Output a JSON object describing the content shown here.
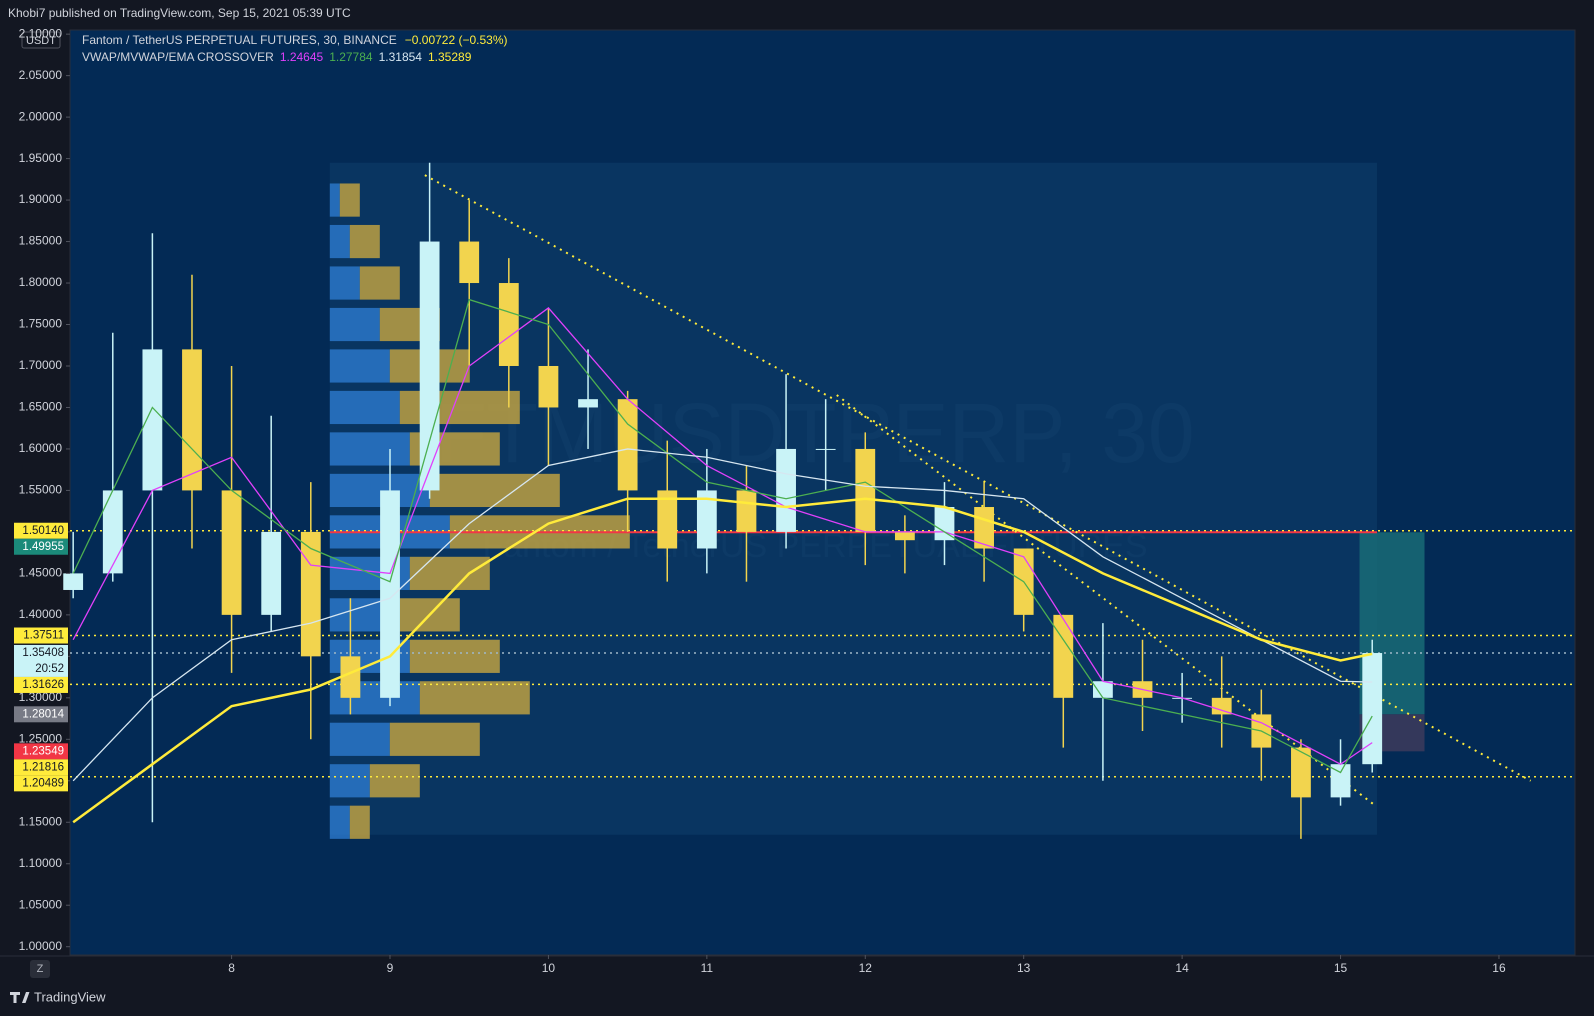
{
  "published": "Khobi7 published on TradingView.com, Sep 15, 2021 05:39 UTC",
  "footer": "TradingView",
  "currency": "USDT",
  "zoom_button": "Z",
  "header": {
    "symbol": "Fantom / TetherUS PERPETUAL FUTURES, 30, BINANCE",
    "change": "−0.00722 (−0.53%)"
  },
  "watermark": {
    "title": "FTMUSDTPERP, 30",
    "subtitle": "Fantom / TetherUS PERPETUAL FUTURES"
  },
  "chart_data": {
    "type": "candlestick",
    "xlim": [
      6.98,
      16.48
    ],
    "xticks": [
      8,
      9,
      10,
      11,
      12,
      13,
      14,
      15,
      16
    ],
    "ylim": [
      0.99,
      2.105
    ],
    "yticks": [
      {
        "value": 1.0,
        "label": "1.00000"
      },
      {
        "value": 1.05,
        "label": "1.05000"
      },
      {
        "value": 1.1,
        "label": "1.10000"
      },
      {
        "value": 1.15,
        "label": "1.15000"
      },
      {
        "value": 1.2,
        "label": "1.20000"
      },
      {
        "value": 1.25,
        "label": "1.25000"
      },
      {
        "value": 1.3,
        "label": "1.30000"
      },
      {
        "value": 1.35,
        "label": "1.35000"
      },
      {
        "value": 1.4,
        "label": "1.40000"
      },
      {
        "value": 1.45,
        "label": "1.45000"
      },
      {
        "value": 1.5,
        "label": "1.50000"
      },
      {
        "value": 1.55,
        "label": "1.55000"
      },
      {
        "value": 1.6,
        "label": "1.60000"
      },
      {
        "value": 1.65,
        "label": "1.65000"
      },
      {
        "value": 1.7,
        "label": "1.70000"
      },
      {
        "value": 1.75,
        "label": "1.75000"
      },
      {
        "value": 1.8,
        "label": "1.80000"
      },
      {
        "value": 1.85,
        "label": "1.85000"
      },
      {
        "value": 1.9,
        "label": "1.90000"
      },
      {
        "value": 1.95,
        "label": "1.95000"
      },
      {
        "value": 2.0,
        "label": "2.00000"
      },
      {
        "value": 2.05,
        "label": "2.05000"
      },
      {
        "value": 2.1,
        "label": "2.10000"
      }
    ],
    "up_color": "#c9f3f7",
    "down_color": "#f2d44e",
    "x": [
      7,
      7.25,
      7.5,
      7.75,
      8,
      8.25,
      8.5,
      8.75,
      9,
      9.25,
      9.5,
      9.75,
      10,
      10.25,
      10.5,
      10.75,
      11,
      11.25,
      11.5,
      11.75,
      12,
      12.25,
      12.5,
      12.75,
      13,
      13.25,
      13.5,
      13.75,
      14,
      14.25,
      14.5,
      14.75,
      15,
      15.2
    ],
    "open": [
      1.43,
      1.45,
      1.55,
      1.72,
      1.55,
      1.4,
      1.5,
      1.35,
      1.3,
      1.55,
      1.85,
      1.8,
      1.7,
      1.65,
      1.66,
      1.55,
      1.48,
      1.55,
      1.5,
      1.6,
      1.6,
      1.5,
      1.49,
      1.53,
      1.48,
      1.4,
      1.3,
      1.32,
      1.3,
      1.3,
      1.28,
      1.24,
      1.18,
      1.22
    ],
    "high": [
      1.5,
      1.74,
      1.86,
      1.81,
      1.7,
      1.64,
      1.56,
      1.42,
      1.6,
      1.945,
      1.9,
      1.83,
      1.77,
      1.72,
      1.67,
      1.61,
      1.6,
      1.58,
      1.69,
      1.66,
      1.62,
      1.52,
      1.56,
      1.56,
      1.48,
      1.4,
      1.39,
      1.37,
      1.33,
      1.35,
      1.31,
      1.25,
      1.25,
      1.37
    ],
    "low": [
      1.42,
      1.44,
      1.15,
      1.48,
      1.33,
      1.38,
      1.25,
      1.28,
      1.29,
      1.54,
      1.7,
      1.65,
      1.58,
      1.6,
      1.5,
      1.44,
      1.45,
      1.44,
      1.48,
      1.55,
      1.46,
      1.45,
      1.46,
      1.44,
      1.38,
      1.24,
      1.2,
      1.26,
      1.27,
      1.24,
      1.2,
      1.13,
      1.17,
      1.21
    ],
    "close": [
      1.45,
      1.55,
      1.72,
      1.55,
      1.4,
      1.5,
      1.35,
      1.3,
      1.55,
      1.85,
      1.8,
      1.7,
      1.65,
      1.66,
      1.55,
      1.48,
      1.55,
      1.5,
      1.6,
      1.6,
      1.5,
      1.49,
      1.53,
      1.48,
      1.4,
      1.3,
      1.32,
      1.3,
      1.3,
      1.28,
      1.24,
      1.18,
      1.22,
      1.354
    ],
    "indicator": {
      "name": "VWAP/MVWAP/EMA CROSSOVER",
      "line_x": [
        7,
        7.5,
        8,
        8.5,
        9,
        9.5,
        10,
        10.5,
        11,
        11.5,
        12,
        12.5,
        13,
        13.5,
        14,
        14.5,
        15,
        15.2
      ],
      "lines": [
        {
          "color": "#e040fb",
          "last": 1.24645,
          "values": [
            1.37,
            1.55,
            1.59,
            1.46,
            1.45,
            1.7,
            1.77,
            1.66,
            1.58,
            1.53,
            1.5,
            1.5,
            1.47,
            1.32,
            1.3,
            1.27,
            1.22,
            1.246
          ]
        },
        {
          "color": "#4caf50",
          "last": 1.27784,
          "values": [
            1.45,
            1.65,
            1.55,
            1.48,
            1.44,
            1.78,
            1.75,
            1.63,
            1.56,
            1.54,
            1.56,
            1.5,
            1.44,
            1.3,
            1.28,
            1.26,
            1.21,
            1.278
          ]
        },
        {
          "color": "#d6e6f0",
          "last": 1.31854,
          "values": [
            1.2,
            1.3,
            1.37,
            1.39,
            1.42,
            1.51,
            1.58,
            1.6,
            1.59,
            1.57,
            1.555,
            1.55,
            1.54,
            1.47,
            1.42,
            1.37,
            1.32,
            1.319
          ]
        },
        {
          "color": "#ffeb3b",
          "last": 1.35289,
          "values": [
            1.15,
            1.22,
            1.29,
            1.31,
            1.35,
            1.45,
            1.51,
            1.54,
            1.54,
            1.53,
            1.54,
            1.53,
            1.5,
            1.45,
            1.41,
            1.37,
            1.345,
            1.353
          ]
        }
      ]
    },
    "profile": {
      "x": [
        8.62,
        15.23
      ],
      "ylim": [
        1.135,
        1.945
      ],
      "prices": [
        1.15,
        1.2,
        1.25,
        1.3,
        1.35,
        1.4,
        1.45,
        1.5,
        1.55,
        1.6,
        1.65,
        1.7,
        1.75,
        1.8,
        1.85,
        1.9
      ],
      "up": [
        10,
        20,
        30,
        45,
        40,
        35,
        40,
        60,
        50,
        40,
        35,
        30,
        25,
        15,
        10,
        5
      ],
      "down": [
        10,
        25,
        45,
        55,
        45,
        30,
        40,
        90,
        65,
        45,
        60,
        40,
        30,
        20,
        15,
        10
      ],
      "up_color": "#2f7fd6",
      "down_color": "#c8a640"
    },
    "trendlines": [
      {
        "x": [
          9.22,
          16.2
        ],
        "y": [
          1.93,
          1.2
        ]
      },
      {
        "x": [
          11.82,
          15.22
        ],
        "y": [
          1.665,
          1.17
        ]
      }
    ],
    "position": {
      "x": [
        15.12,
        15.53
      ],
      "target_color": "#1a6f78",
      "stop_color": "#3a3a5c"
    },
    "price_labels": [
      {
        "value": 1.5014,
        "label": "1.50140",
        "bg": "#ffeb3b",
        "fg": "#131722",
        "line": "dotted",
        "line_color": "#ffeb3b"
      },
      {
        "value": 1.49955,
        "label": "1.49955",
        "bg": "#1b8a7a",
        "fg": "#ffffff",
        "line": "solid",
        "line_color": "#f23645"
      },
      {
        "value": 1.37511,
        "label": "1.37511",
        "bg": "#ffeb3b",
        "fg": "#131722",
        "line": "dotted",
        "line_color": "#ffeb3b"
      },
      {
        "value": 1.35408,
        "label": "1.35408",
        "time": "20:52",
        "bg": "#c9f3f7",
        "fg": "#131722",
        "line": "dotted",
        "line_color": "#9fb8c8"
      },
      {
        "value": 1.31626,
        "label": "1.31626",
        "bg": "#ffeb3b",
        "fg": "#131722",
        "line": "dotted",
        "line_color": "#ffeb3b"
      },
      {
        "value": 1.28014,
        "label": "1.28014",
        "bg": "#787b86",
        "fg": "#ffffff",
        "line": "none",
        "line_color": "#787b86"
      },
      {
        "value": 1.23549,
        "label": "1.23549",
        "bg": "#f23645",
        "fg": "#ffffff",
        "line": "none",
        "line_color": "#f23645"
      },
      {
        "value": 1.21816,
        "label": "1.21816",
        "bg": "#ffeb3b",
        "fg": "#131722",
        "line": "none",
        "line_color": "#ffeb3b"
      },
      {
        "value": 1.20489,
        "label": "1.20489",
        "bg": "#ffeb3b",
        "fg": "#131722",
        "line": "dotted",
        "line_color": "#ffeb3b"
      }
    ]
  }
}
